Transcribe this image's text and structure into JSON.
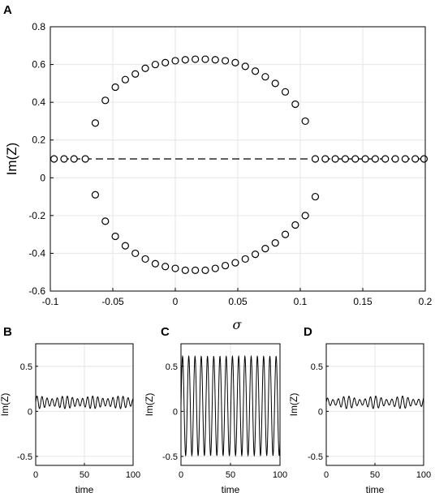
{
  "panels": {
    "A": {
      "label": "A"
    },
    "B": {
      "label": "B"
    },
    "C": {
      "label": "C"
    },
    "D": {
      "label": "D"
    }
  },
  "chart_data": [
    {
      "panel": "A",
      "type": "scatter",
      "xlabel": "σ",
      "ylabel": "Im(Z)",
      "xlim": [
        -0.1,
        0.2
      ],
      "ylim": [
        -0.6,
        0.8
      ],
      "xticks": [
        "-0.1",
        "-0.05",
        "0",
        "0.05",
        "0.1",
        "0.15",
        "0.2"
      ],
      "yticks": [
        "-0.6",
        "-0.4",
        "-0.2",
        "0",
        "0.2",
        "0.4",
        "0.6",
        "0.8"
      ],
      "grid": true,
      "reference_line": {
        "y": 0.1,
        "style": "dashed"
      },
      "series": [
        {
          "marker": "open-circle",
          "x": [
            -0.097,
            -0.089,
            -0.081,
            -0.072,
            -0.064,
            -0.056,
            -0.048,
            -0.04,
            -0.032,
            -0.024,
            -0.016,
            -0.008,
            0.0,
            0.008,
            0.016,
            0.024,
            0.032,
            0.04,
            0.048,
            0.056,
            0.064,
            0.072,
            0.08,
            0.088,
            0.096,
            0.104,
            0.112,
            0.12,
            0.128,
            0.136,
            0.144,
            0.152,
            0.16,
            0.168,
            0.176,
            0.184,
            0.192,
            0.199
          ],
          "upper": [
            0.1,
            0.1,
            0.1,
            0.1,
            0.29,
            0.41,
            0.48,
            0.52,
            0.55,
            0.58,
            0.6,
            0.61,
            0.62,
            0.625,
            0.628,
            0.628,
            0.625,
            0.62,
            0.61,
            0.59,
            0.565,
            0.535,
            0.5,
            0.455,
            0.39,
            0.3,
            0.1,
            0.1,
            0.1,
            0.1,
            0.1,
            0.1,
            0.1,
            0.1,
            0.1,
            0.1,
            0.1,
            0.1
          ],
          "lower": [
            null,
            null,
            null,
            null,
            -0.09,
            -0.23,
            -0.31,
            -0.36,
            -0.4,
            -0.43,
            -0.455,
            -0.47,
            -0.48,
            -0.49,
            -0.49,
            -0.49,
            -0.48,
            -0.465,
            -0.45,
            -0.43,
            -0.405,
            -0.375,
            -0.345,
            -0.3,
            -0.25,
            -0.2,
            -0.1,
            null,
            null,
            null,
            null,
            null,
            null,
            null,
            null,
            null,
            null,
            null
          ]
        }
      ]
    },
    {
      "panel": "B",
      "type": "line",
      "xlabel": "time",
      "ylabel": "Im(Z)",
      "xlim": [
        0,
        100
      ],
      "ylim": [
        -0.6,
        0.75
      ],
      "xticks": [
        "0",
        "50",
        "100"
      ],
      "yticks": [
        "-0.5",
        "0",
        "0.5"
      ],
      "grid": true,
      "signal": {
        "mean": 0.1,
        "amplitude_range": [
          0.04,
          0.07
        ],
        "period": 5.2
      }
    },
    {
      "panel": "C",
      "type": "line",
      "xlabel": "time",
      "ylabel": "Im(Z)",
      "xlim": [
        0,
        100
      ],
      "ylim": [
        -0.6,
        0.75
      ],
      "xticks": [
        "0",
        "50",
        "100"
      ],
      "yticks": [
        "-0.5",
        "0",
        "0.5"
      ],
      "grid": true,
      "signal": {
        "mean": 0.06,
        "amplitude": 0.55,
        "period": 6.3
      }
    },
    {
      "panel": "D",
      "type": "line",
      "xlabel": "time",
      "ylabel": "Im(Z)",
      "xlim": [
        0,
        100
      ],
      "ylim": [
        -0.6,
        0.75
      ],
      "xticks": [
        "0",
        "50",
        "100"
      ],
      "yticks": [
        "-0.5",
        "0",
        "0.5"
      ],
      "grid": true,
      "signal": {
        "mean": 0.1,
        "amplitude_range": [
          0.03,
          0.07
        ],
        "period": 5.5
      }
    }
  ]
}
